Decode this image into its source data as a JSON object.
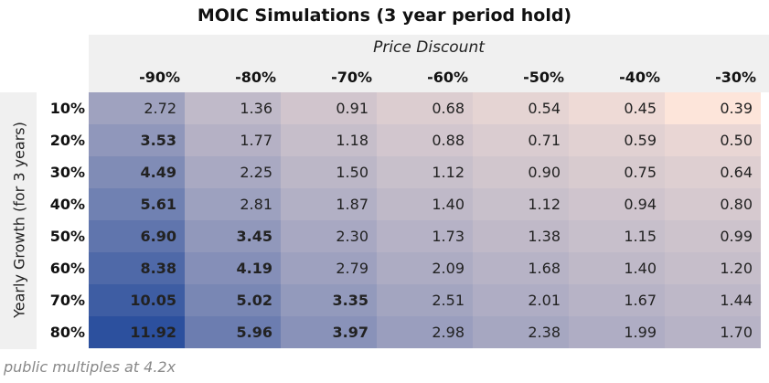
{
  "title": "MOIC Simulations (3 year period hold)",
  "column_header": "Price Discount",
  "row_header": "Yearly Growth (for 3 years)",
  "columns": [
    "-90%",
    "-80%",
    "-70%",
    "-60%",
    "-50%",
    "-40%",
    "-30%"
  ],
  "rows": [
    {
      "label": "10%",
      "values": [
        2.72,
        1.36,
        0.91,
        0.68,
        0.54,
        0.45,
        0.39
      ]
    },
    {
      "label": "20%",
      "values": [
        3.53,
        1.77,
        1.18,
        0.88,
        0.71,
        0.59,
        0.5
      ]
    },
    {
      "label": "30%",
      "values": [
        4.49,
        2.25,
        1.5,
        1.12,
        0.9,
        0.75,
        0.64
      ]
    },
    {
      "label": "40%",
      "values": [
        5.61,
        2.81,
        1.87,
        1.4,
        1.12,
        0.94,
        0.8
      ]
    },
    {
      "label": "50%",
      "values": [
        6.9,
        3.45,
        2.3,
        1.73,
        1.38,
        1.15,
        0.99
      ]
    },
    {
      "label": "60%",
      "values": [
        8.38,
        4.19,
        2.79,
        2.09,
        1.68,
        1.4,
        1.2
      ]
    },
    {
      "label": "70%",
      "values": [
        10.05,
        5.02,
        3.35,
        2.51,
        2.01,
        1.67,
        1.44
      ]
    },
    {
      "label": "80%",
      "values": [
        11.92,
        5.96,
        3.97,
        2.98,
        2.38,
        1.99,
        1.7
      ]
    }
  ],
  "low_color": "#fde5da",
  "high_color": "#2c509e",
  "bold_above": 3,
  "footnote": "public multiples at 4.2x"
}
